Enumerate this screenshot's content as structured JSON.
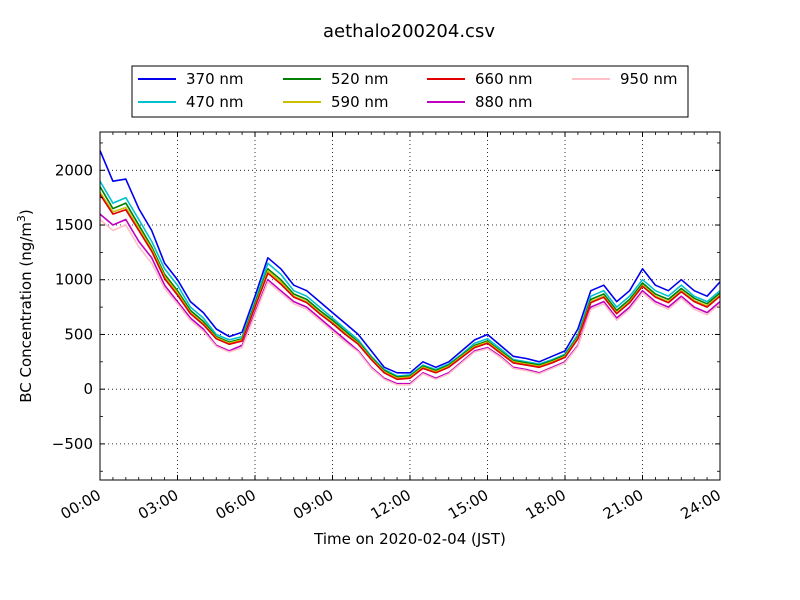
{
  "chart_data": {
    "type": "line",
    "title": "aethalo200204.csv",
    "xlabel": "Time on 2020-02-04 (JST)",
    "ylabel": "BC Concentration (ng/m",
    "ylabel_sup": "3",
    "ylabel_close": ")",
    "xlim": [
      0,
      24
    ],
    "ylim": [
      -830,
      2350
    ],
    "x_unit": "hours",
    "x_ticks": [
      0,
      3,
      6,
      9,
      12,
      15,
      18,
      21,
      24
    ],
    "x_tick_labels": [
      "00:00",
      "03:00",
      "06:00",
      "09:00",
      "12:00",
      "15:00",
      "18:00",
      "21:00",
      "24:00"
    ],
    "y_ticks": [
      -500,
      0,
      500,
      1000,
      1500,
      2000
    ],
    "y_tick_labels": [
      "−500",
      "0",
      "500",
      "1000",
      "1500",
      "2000"
    ],
    "grid": true,
    "legend_position": "top",
    "x": [
      0.0,
      0.5,
      1.0,
      1.5,
      2.0,
      2.5,
      3.0,
      3.5,
      4.0,
      4.5,
      5.0,
      5.5,
      6.0,
      6.5,
      7.0,
      7.5,
      8.0,
      8.5,
      9.0,
      9.5,
      10.0,
      10.5,
      11.0,
      11.5,
      12.0,
      12.5,
      13.0,
      13.5,
      14.0,
      14.5,
      15.0,
      15.5,
      16.0,
      16.5,
      17.0,
      17.5,
      18.0,
      18.5,
      19.0,
      19.5,
      20.0,
      20.5,
      21.0,
      21.5,
      22.0,
      22.5,
      23.0,
      23.5,
      24.0
    ],
    "series": [
      {
        "name": "370 nm",
        "color": "#0000ee",
        "values": [
          2180,
          1900,
          1920,
          1650,
          1450,
          1150,
          1000,
          800,
          700,
          550,
          480,
          520,
          850,
          1200,
          1100,
          950,
          900,
          800,
          700,
          600,
          500,
          350,
          200,
          150,
          150,
          250,
          200,
          250,
          350,
          450,
          500,
          400,
          300,
          280,
          250,
          300,
          350,
          550,
          900,
          950,
          800,
          900,
          1100,
          950,
          900,
          1000,
          900,
          850,
          980
        ]
      },
      {
        "name": "470 nm",
        "color": "#00c0d0",
        "values": [
          1900,
          1700,
          1750,
          1550,
          1350,
          1100,
          950,
          750,
          650,
          500,
          450,
          480,
          800,
          1150,
          1050,
          900,
          850,
          750,
          650,
          550,
          450,
          300,
          180,
          120,
          130,
          220,
          180,
          230,
          320,
          420,
          460,
          370,
          270,
          250,
          230,
          270,
          320,
          500,
          850,
          900,
          750,
          850,
          1000,
          900,
          850,
          950,
          850,
          800,
          900
        ]
      },
      {
        "name": "520 nm",
        "color": "#008000",
        "values": [
          1850,
          1650,
          1700,
          1500,
          1300,
          1050,
          900,
          720,
          620,
          480,
          430,
          460,
          780,
          1100,
          1000,
          870,
          820,
          720,
          630,
          530,
          430,
          290,
          170,
          110,
          120,
          210,
          170,
          220,
          310,
          400,
          440,
          350,
          260,
          240,
          220,
          260,
          310,
          480,
          820,
          870,
          720,
          820,
          970,
          870,
          820,
          920,
          830,
          780,
          880
        ]
      },
      {
        "name": "590 nm",
        "color": "#c8c000",
        "values": [
          1800,
          1620,
          1660,
          1470,
          1280,
          1030,
          880,
          700,
          600,
          470,
          420,
          450,
          760,
          1080,
          980,
          850,
          800,
          700,
          610,
          510,
          420,
          280,
          160,
          100,
          110,
          200,
          160,
          210,
          300,
          390,
          430,
          340,
          250,
          230,
          210,
          250,
          300,
          470,
          800,
          850,
          700,
          800,
          950,
          850,
          800,
          900,
          810,
          760,
          860
        ]
      },
      {
        "name": "660 nm",
        "color": "#e00000",
        "values": [
          1780,
          1600,
          1640,
          1450,
          1260,
          1010,
          860,
          690,
          590,
          460,
          410,
          440,
          750,
          1060,
          960,
          840,
          790,
          690,
          600,
          500,
          410,
          270,
          150,
          90,
          100,
          190,
          150,
          200,
          290,
          380,
          420,
          330,
          240,
          220,
          200,
          240,
          290,
          460,
          790,
          840,
          690,
          790,
          940,
          840,
          790,
          890,
          800,
          750,
          850
        ]
      },
      {
        "name": "880 nm",
        "color": "#c000c0",
        "values": [
          1600,
          1500,
          1550,
          1350,
          1200,
          950,
          800,
          650,
          550,
          400,
          350,
          400,
          700,
          1000,
          900,
          800,
          750,
          650,
          550,
          450,
          350,
          200,
          100,
          50,
          50,
          150,
          100,
          150,
          250,
          350,
          380,
          300,
          200,
          180,
          150,
          200,
          250,
          400,
          750,
          800,
          650,
          750,
          900,
          800,
          750,
          850,
          750,
          700,
          800
        ]
      },
      {
        "name": "950 nm",
        "color": "#ffc0c8",
        "values": [
          1550,
          1450,
          1500,
          1300,
          1150,
          920,
          780,
          630,
          530,
          390,
          340,
          380,
          680,
          980,
          880,
          780,
          730,
          630,
          530,
          430,
          340,
          190,
          90,
          40,
          40,
          140,
          90,
          140,
          240,
          340,
          370,
          290,
          190,
          170,
          140,
          190,
          240,
          390,
          730,
          780,
          630,
          730,
          880,
          780,
          730,
          830,
          730,
          680,
          780
        ]
      }
    ]
  }
}
